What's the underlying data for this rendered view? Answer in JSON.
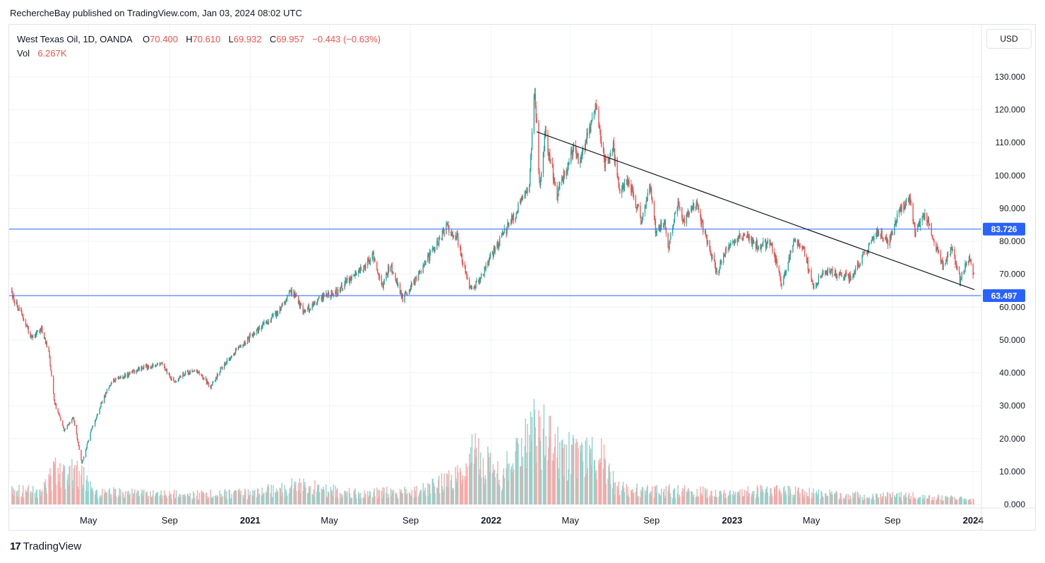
{
  "header": {
    "published_by": "RechercheBay published on TradingView.com, Jan 03, 2024 08:02 UTC"
  },
  "legend": {
    "symbol": "West Texas Oil, 1D, OANDA",
    "o_label": "O",
    "o_value": "70.400",
    "h_label": "H",
    "h_value": "70.610",
    "l_label": "L",
    "l_value": "69.932",
    "c_label": "C",
    "c_value": "69.957",
    "change": "−0.443 (−0.63%)",
    "vol_label": "Vol",
    "vol_value": "6.267K"
  },
  "currency": "USD",
  "footer": {
    "brand": "TradingView",
    "logo_glyph": "17"
  },
  "colors": {
    "up": "#26a69a",
    "down": "#ef5350",
    "up_vol": "#92d2cc",
    "down_vol": "#f7a9a7",
    "level_line": "#2962ff",
    "trendline": "#131722",
    "grid": "#f0f3fa"
  },
  "chart_data": {
    "type": "candlestick",
    "title": "West Texas Oil, 1D, OANDA",
    "ylim": [
      0,
      140
    ],
    "y_ticks": [
      "0.000",
      "10.000",
      "20.000",
      "30.000",
      "40.000",
      "50.000",
      "60.000",
      "70.000",
      "80.000",
      "90.000",
      "100.000",
      "110.000",
      "120.000",
      "130.000"
    ],
    "y_tick_values": [
      0,
      10,
      20,
      30,
      40,
      50,
      60,
      70,
      80,
      90,
      100,
      110,
      120,
      130
    ],
    "x_ticks": [
      {
        "label": "May",
        "date": "2020-05-01",
        "bold": false
      },
      {
        "label": "Sep",
        "date": "2020-09-01",
        "bold": false
      },
      {
        "label": "2021",
        "date": "2021-01-01",
        "bold": true
      },
      {
        "label": "May",
        "date": "2021-05-01",
        "bold": false
      },
      {
        "label": "Sep",
        "date": "2021-09-01",
        "bold": false
      },
      {
        "label": "2022",
        "date": "2022-01-01",
        "bold": true
      },
      {
        "label": "May",
        "date": "2022-05-01",
        "bold": false
      },
      {
        "label": "Sep",
        "date": "2022-09-01",
        "bold": false
      },
      {
        "label": "2023",
        "date": "2023-01-01",
        "bold": true
      },
      {
        "label": "May",
        "date": "2023-05-01",
        "bold": false
      },
      {
        "label": "Sep",
        "date": "2023-09-01",
        "bold": false
      },
      {
        "label": "2024",
        "date": "2024-01-01",
        "bold": true
      }
    ],
    "price_path": [
      [
        "2020-01-06",
        63.3
      ],
      [
        "2020-01-20",
        58.5
      ],
      [
        "2020-02-05",
        50.5
      ],
      [
        "2020-02-20",
        53.5
      ],
      [
        "2020-03-02",
        46.5
      ],
      [
        "2020-03-10",
        31.5
      ],
      [
        "2020-03-25",
        22.5
      ],
      [
        "2020-04-08",
        26.5
      ],
      [
        "2020-04-21",
        12.5
      ],
      [
        "2020-05-05",
        22.5
      ],
      [
        "2020-05-20",
        30.5
      ],
      [
        "2020-06-05",
        37.5
      ],
      [
        "2020-06-25",
        39.0
      ],
      [
        "2020-07-20",
        41.5
      ],
      [
        "2020-08-20",
        42.5
      ],
      [
        "2020-09-08",
        37.0
      ],
      [
        "2020-09-25",
        40.0
      ],
      [
        "2020-10-15",
        40.5
      ],
      [
        "2020-11-02",
        35.5
      ],
      [
        "2020-11-20",
        42.0
      ],
      [
        "2020-12-10",
        46.5
      ],
      [
        "2021-01-08",
        52.5
      ],
      [
        "2021-02-10",
        58.0
      ],
      [
        "2021-03-05",
        65.0
      ],
      [
        "2021-03-23",
        58.5
      ],
      [
        "2021-04-15",
        62.5
      ],
      [
        "2021-05-15",
        65.0
      ],
      [
        "2021-06-15",
        71.5
      ],
      [
        "2021-07-06",
        75.5
      ],
      [
        "2021-07-20",
        66.5
      ],
      [
        "2021-08-01",
        73.0
      ],
      [
        "2021-08-20",
        62.5
      ],
      [
        "2021-09-10",
        69.0
      ],
      [
        "2021-10-10",
        79.0
      ],
      [
        "2021-10-26",
        84.5
      ],
      [
        "2021-11-10",
        81.5
      ],
      [
        "2021-11-26",
        68.0
      ],
      [
        "2021-12-02",
        65.0
      ],
      [
        "2021-12-20",
        70.5
      ],
      [
        "2022-01-10",
        79.0
      ],
      [
        "2022-02-10",
        89.5
      ],
      [
        "2022-02-28",
        98.0
      ],
      [
        "2022-03-08",
        126.5
      ],
      [
        "2022-03-16",
        95.5
      ],
      [
        "2022-03-24",
        113.0
      ],
      [
        "2022-04-11",
        94.0
      ],
      [
        "2022-05-05",
        108.0
      ],
      [
        "2022-05-15",
        104.0
      ],
      [
        "2022-06-08",
        121.0
      ],
      [
        "2022-06-22",
        104.0
      ],
      [
        "2022-07-05",
        108.5
      ],
      [
        "2022-07-14",
        96.0
      ],
      [
        "2022-07-29",
        98.5
      ],
      [
        "2022-08-16",
        86.5
      ],
      [
        "2022-08-30",
        97.0
      ],
      [
        "2022-09-07",
        83.0
      ],
      [
        "2022-09-20",
        86.0
      ],
      [
        "2022-09-26",
        77.5
      ],
      [
        "2022-10-10",
        91.5
      ],
      [
        "2022-10-20",
        85.5
      ],
      [
        "2022-11-07",
        92.0
      ],
      [
        "2022-11-28",
        77.0
      ],
      [
        "2022-12-09",
        71.0
      ],
      [
        "2022-12-30",
        80.0
      ],
      [
        "2023-01-20",
        81.5
      ],
      [
        "2023-02-10",
        78.5
      ],
      [
        "2023-03-01",
        79.5
      ],
      [
        "2023-03-17",
        66.5
      ],
      [
        "2023-04-05",
        81.0
      ],
      [
        "2023-04-20",
        77.5
      ],
      [
        "2023-05-04",
        65.5
      ],
      [
        "2023-05-20",
        71.5
      ],
      [
        "2023-06-10",
        70.0
      ],
      [
        "2023-06-28",
        69.0
      ],
      [
        "2023-07-20",
        76.0
      ],
      [
        "2023-08-10",
        83.0
      ],
      [
        "2023-08-25",
        79.5
      ],
      [
        "2023-09-15",
        90.5
      ],
      [
        "2023-09-27",
        93.5
      ],
      [
        "2023-10-05",
        82.5
      ],
      [
        "2023-10-20",
        88.5
      ],
      [
        "2023-11-02",
        80.5
      ],
      [
        "2023-11-16",
        72.5
      ],
      [
        "2023-11-29",
        78.0
      ],
      [
        "2023-12-12",
        68.5
      ],
      [
        "2023-12-26",
        75.0
      ],
      [
        "2024-01-02",
        70.0
      ]
    ],
    "volume_path": [
      [
        "2020-01-06",
        4.5
      ],
      [
        "2020-02-20",
        4.0
      ],
      [
        "2020-03-15",
        11.0
      ],
      [
        "2020-04-20",
        9.0
      ],
      [
        "2020-05-15",
        3.8
      ],
      [
        "2020-10-01",
        3.0
      ],
      [
        "2021-01-01",
        3.5
      ],
      [
        "2021-03-15",
        6.0
      ],
      [
        "2021-06-01",
        3.5
      ],
      [
        "2021-09-01",
        4.0
      ],
      [
        "2021-11-26",
        9.5
      ],
      [
        "2021-12-05",
        17.0
      ],
      [
        "2022-01-15",
        8.5
      ],
      [
        "2022-03-08",
        24.0
      ],
      [
        "2022-04-15",
        16.5
      ],
      [
        "2022-06-20",
        14.0
      ],
      [
        "2022-07-10",
        5.0
      ],
      [
        "2022-09-01",
        4.5
      ],
      [
        "2023-01-01",
        3.8
      ],
      [
        "2023-03-17",
        4.5
      ],
      [
        "2023-05-04",
        3.5
      ],
      [
        "2023-08-01",
        2.5
      ],
      [
        "2023-10-01",
        2.8
      ],
      [
        "2024-01-02",
        1.5
      ]
    ],
    "first_open": 65.8,
    "last_candle": {
      "date": "2024-01-02",
      "open": 70.4,
      "high": 70.61,
      "low": 69.932,
      "close": 69.957,
      "volume": "6.267K"
    },
    "horizontal_levels": [
      {
        "price": 83.726,
        "label": "83.726"
      },
      {
        "price": 63.497,
        "label": "63.497"
      }
    ],
    "trendline": {
      "start": {
        "date": "2022-03-11",
        "price": 113.3
      },
      "end": {
        "date": "2024-01-03",
        "price": 65.3
      }
    },
    "volume_unit": "K",
    "grid": true,
    "legend_position": "top-left"
  }
}
